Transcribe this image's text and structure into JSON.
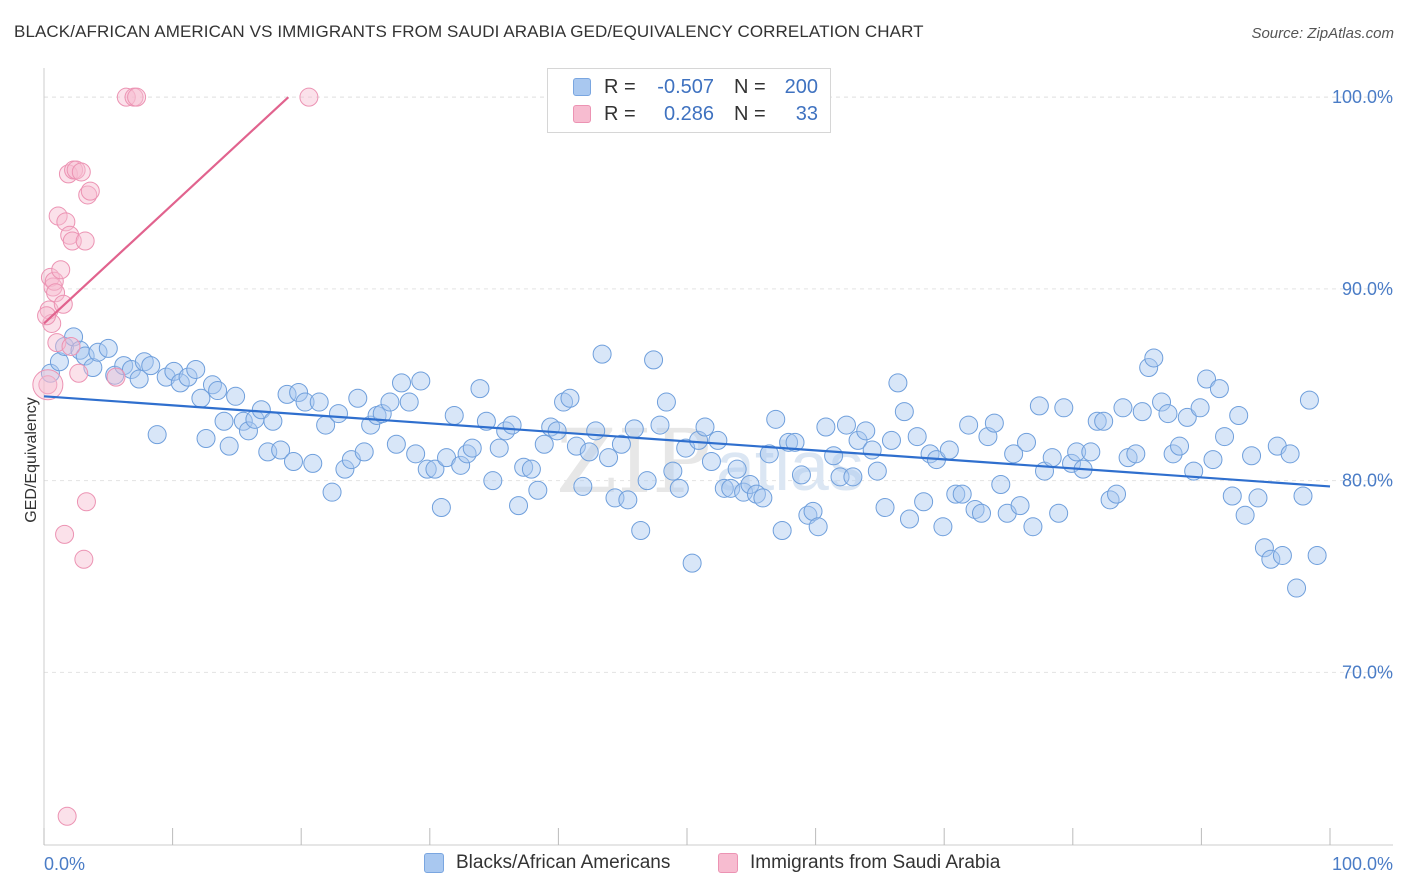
{
  "title": "BLACK/AFRICAN AMERICAN VS IMMIGRANTS FROM SAUDI ARABIA GED/EQUIVALENCY CORRELATION CHART",
  "source": "Source: ZipAtlas.com",
  "watermark": {
    "zip": "ZIP",
    "atlas": "atlas"
  },
  "colors": {
    "blue": "#4a80d6",
    "blue_fill": "#a9c8f0",
    "pink": "#e8709a",
    "pink_fill": "#f7bcd0",
    "tick_text": "#4a7cc6"
  },
  "legend": {
    "rows": [
      {
        "r_label": "R =",
        "r_value": "-0.507",
        "n_label": "N =",
        "n_value": "200"
      },
      {
        "r_label": "R =",
        "r_value": "0.286",
        "n_label": "N =",
        "n_value": "33"
      }
    ]
  },
  "bottom_legend": [
    "Blacks/African Americans",
    "Immigrants from Saudi Arabia"
  ],
  "chart_data": {
    "type": "scatter",
    "title": "BLACK/AFRICAN AMERICAN VS IMMIGRANTS FROM SAUDI ARABIA GED/EQUIVALENCY CORRELATION CHART",
    "xlabel": "",
    "ylabel": "GED/Equivalency",
    "xlim": [
      0,
      100
    ],
    "ylim": [
      61.0,
      101.0
    ],
    "x_tick_labels": [
      "0.0%",
      "100.0%"
    ],
    "y_ticks": [
      70,
      80,
      90,
      100
    ],
    "y_tick_labels": [
      "70.0%",
      "80.0%",
      "90.0%",
      "100.0%"
    ],
    "grid": true,
    "legend_position": "top-center",
    "series": [
      {
        "name": "Blacks/African Americans",
        "color": "#4a80d6",
        "trend": {
          "x": [
            0,
            100
          ],
          "y": [
            84.4,
            79.7
          ]
        },
        "points": [
          [
            0.5,
            85.6
          ],
          [
            1.2,
            86.2
          ],
          [
            1.6,
            87.0
          ],
          [
            2.3,
            87.5
          ],
          [
            2.8,
            86.8
          ],
          [
            3.2,
            86.5
          ],
          [
            3.8,
            85.9
          ],
          [
            4.2,
            86.7
          ],
          [
            5.0,
            86.9
          ],
          [
            5.5,
            85.5
          ],
          [
            6.2,
            86.0
          ],
          [
            6.8,
            85.8
          ],
          [
            7.4,
            85.3
          ],
          [
            7.8,
            86.2
          ],
          [
            8.3,
            86.0
          ],
          [
            8.8,
            82.4
          ],
          [
            9.5,
            85.4
          ],
          [
            10.1,
            85.7
          ],
          [
            10.6,
            85.1
          ],
          [
            11.2,
            85.4
          ],
          [
            11.8,
            85.8
          ],
          [
            12.2,
            84.3
          ],
          [
            12.6,
            82.2
          ],
          [
            13.1,
            85.0
          ],
          [
            13.5,
            84.7
          ],
          [
            14.0,
            83.1
          ],
          [
            14.4,
            81.8
          ],
          [
            14.9,
            84.4
          ],
          [
            15.5,
            83.1
          ],
          [
            15.9,
            82.6
          ],
          [
            16.4,
            83.2
          ],
          [
            16.9,
            83.7
          ],
          [
            17.4,
            81.5
          ],
          [
            17.8,
            83.1
          ],
          [
            18.4,
            81.6
          ],
          [
            18.9,
            84.5
          ],
          [
            19.4,
            81.0
          ],
          [
            19.8,
            84.6
          ],
          [
            20.3,
            84.1
          ],
          [
            20.9,
            80.9
          ],
          [
            21.4,
            84.1
          ],
          [
            21.9,
            82.9
          ],
          [
            22.4,
            79.4
          ],
          [
            22.9,
            83.5
          ],
          [
            23.4,
            80.6
          ],
          [
            23.9,
            81.1
          ],
          [
            24.4,
            84.3
          ],
          [
            24.9,
            81.5
          ],
          [
            25.4,
            82.9
          ],
          [
            25.9,
            83.4
          ],
          [
            26.3,
            83.5
          ],
          [
            26.9,
            84.1
          ],
          [
            27.4,
            81.9
          ],
          [
            27.8,
            85.1
          ],
          [
            28.4,
            84.1
          ],
          [
            28.9,
            81.4
          ],
          [
            29.3,
            85.2
          ],
          [
            29.8,
            80.6
          ],
          [
            30.4,
            80.6
          ],
          [
            30.9,
            78.6
          ],
          [
            31.3,
            81.2
          ],
          [
            31.9,
            83.4
          ],
          [
            32.4,
            80.8
          ],
          [
            32.9,
            81.4
          ],
          [
            33.3,
            81.7
          ],
          [
            33.9,
            84.8
          ],
          [
            34.4,
            83.1
          ],
          [
            34.9,
            80.0
          ],
          [
            35.4,
            81.7
          ],
          [
            35.9,
            82.6
          ],
          [
            36.4,
            82.9
          ],
          [
            36.9,
            78.7
          ],
          [
            37.3,
            80.7
          ],
          [
            37.9,
            80.6
          ],
          [
            38.4,
            79.5
          ],
          [
            38.9,
            81.9
          ],
          [
            39.4,
            82.8
          ],
          [
            39.9,
            82.6
          ],
          [
            40.4,
            84.1
          ],
          [
            40.9,
            84.3
          ],
          [
            41.4,
            81.8
          ],
          [
            41.9,
            79.7
          ],
          [
            42.4,
            81.5
          ],
          [
            42.9,
            82.6
          ],
          [
            43.4,
            86.6
          ],
          [
            43.9,
            81.2
          ],
          [
            44.4,
            79.1
          ],
          [
            44.9,
            81.9
          ],
          [
            45.4,
            79.0
          ],
          [
            45.9,
            82.7
          ],
          [
            46.4,
            77.4
          ],
          [
            46.9,
            80.0
          ],
          [
            47.4,
            86.3
          ],
          [
            47.9,
            82.9
          ],
          [
            48.4,
            84.1
          ],
          [
            48.9,
            80.5
          ],
          [
            49.4,
            79.6
          ],
          [
            49.9,
            81.7
          ],
          [
            50.4,
            75.7
          ],
          [
            50.9,
            82.1
          ],
          [
            51.4,
            82.8
          ],
          [
            51.9,
            81.0
          ],
          [
            52.4,
            82.1
          ],
          [
            52.9,
            79.6
          ],
          [
            53.4,
            79.6
          ],
          [
            53.9,
            80.6
          ],
          [
            54.4,
            79.4
          ],
          [
            54.9,
            79.8
          ],
          [
            55.4,
            79.3
          ],
          [
            55.9,
            79.1
          ],
          [
            56.4,
            81.4
          ],
          [
            56.9,
            83.2
          ],
          [
            57.4,
            77.4
          ],
          [
            57.9,
            82.0
          ],
          [
            58.4,
            82.0
          ],
          [
            58.9,
            80.3
          ],
          [
            59.4,
            78.2
          ],
          [
            59.8,
            78.4
          ],
          [
            60.2,
            77.6
          ],
          [
            60.8,
            82.8
          ],
          [
            61.4,
            81.3
          ],
          [
            61.9,
            80.2
          ],
          [
            62.4,
            82.9
          ],
          [
            62.9,
            80.2
          ],
          [
            63.3,
            82.1
          ],
          [
            63.9,
            82.6
          ],
          [
            64.4,
            81.6
          ],
          [
            64.8,
            80.5
          ],
          [
            65.4,
            78.6
          ],
          [
            65.9,
            82.1
          ],
          [
            66.4,
            85.1
          ],
          [
            66.9,
            83.6
          ],
          [
            67.3,
            78.0
          ],
          [
            67.9,
            82.3
          ],
          [
            68.4,
            78.9
          ],
          [
            68.9,
            81.4
          ],
          [
            69.4,
            81.1
          ],
          [
            69.9,
            77.6
          ],
          [
            70.4,
            81.6
          ],
          [
            70.9,
            79.3
          ],
          [
            71.4,
            79.3
          ],
          [
            71.9,
            82.9
          ],
          [
            72.4,
            78.5
          ],
          [
            72.9,
            78.3
          ],
          [
            73.4,
            82.3
          ],
          [
            73.9,
            83.0
          ],
          [
            74.4,
            79.8
          ],
          [
            74.9,
            78.3
          ],
          [
            75.4,
            81.4
          ],
          [
            75.9,
            78.7
          ],
          [
            76.4,
            82.0
          ],
          [
            76.9,
            77.6
          ],
          [
            77.4,
            83.9
          ],
          [
            77.8,
            80.5
          ],
          [
            78.4,
            81.2
          ],
          [
            78.9,
            78.3
          ],
          [
            79.3,
            83.8
          ],
          [
            79.9,
            80.9
          ],
          [
            80.3,
            81.5
          ],
          [
            80.8,
            80.6
          ],
          [
            81.4,
            81.5
          ],
          [
            81.9,
            83.1
          ],
          [
            82.4,
            83.1
          ],
          [
            82.9,
            79.0
          ],
          [
            83.4,
            79.3
          ],
          [
            83.9,
            83.8
          ],
          [
            84.3,
            81.2
          ],
          [
            84.9,
            81.4
          ],
          [
            85.4,
            83.6
          ],
          [
            85.9,
            85.9
          ],
          [
            86.3,
            86.4
          ],
          [
            86.9,
            84.1
          ],
          [
            87.4,
            83.5
          ],
          [
            87.8,
            81.4
          ],
          [
            88.3,
            81.8
          ],
          [
            88.9,
            83.3
          ],
          [
            89.4,
            80.5
          ],
          [
            89.9,
            83.8
          ],
          [
            90.4,
            85.3
          ],
          [
            90.9,
            81.1
          ],
          [
            91.4,
            84.8
          ],
          [
            91.8,
            82.3
          ],
          [
            92.4,
            79.2
          ],
          [
            92.9,
            83.4
          ],
          [
            93.4,
            78.2
          ],
          [
            93.9,
            81.3
          ],
          [
            94.4,
            79.1
          ],
          [
            94.9,
            76.5
          ],
          [
            95.4,
            75.9
          ],
          [
            95.9,
            81.8
          ],
          [
            96.3,
            76.1
          ],
          [
            96.9,
            81.4
          ],
          [
            97.4,
            74.4
          ],
          [
            97.9,
            79.2
          ],
          [
            98.4,
            84.2
          ],
          [
            99.0,
            76.1
          ]
        ]
      },
      {
        "name": "Immigrants from Saudi Arabia",
        "color": "#e8709a",
        "trend": {
          "x": [
            0,
            19
          ],
          "y": [
            88.2,
            100.0
          ]
        },
        "points": [
          [
            0.3,
            85.0
          ],
          [
            0.4,
            88.9
          ],
          [
            0.5,
            90.6
          ],
          [
            0.6,
            88.2
          ],
          [
            0.7,
            90.1
          ],
          [
            0.8,
            90.4
          ],
          [
            0.9,
            89.8
          ],
          [
            1.0,
            87.2
          ],
          [
            1.1,
            93.8
          ],
          [
            1.3,
            91.0
          ],
          [
            1.5,
            89.2
          ],
          [
            1.6,
            77.2
          ],
          [
            1.7,
            93.5
          ],
          [
            1.8,
            62.5
          ],
          [
            1.9,
            96.0
          ],
          [
            2.0,
            92.8
          ],
          [
            2.1,
            87.0
          ],
          [
            2.2,
            92.5
          ],
          [
            2.3,
            96.2
          ],
          [
            2.5,
            96.2
          ],
          [
            2.7,
            85.6
          ],
          [
            2.9,
            96.1
          ],
          [
            3.1,
            75.9
          ],
          [
            3.2,
            92.5
          ],
          [
            3.3,
            78.9
          ],
          [
            3.4,
            94.9
          ],
          [
            3.6,
            95.1
          ],
          [
            5.6,
            85.4
          ],
          [
            6.4,
            100.0
          ],
          [
            7.0,
            100.0
          ],
          [
            7.2,
            100.0
          ],
          [
            20.6,
            100.0
          ],
          [
            0.2,
            88.6
          ]
        ]
      }
    ]
  }
}
